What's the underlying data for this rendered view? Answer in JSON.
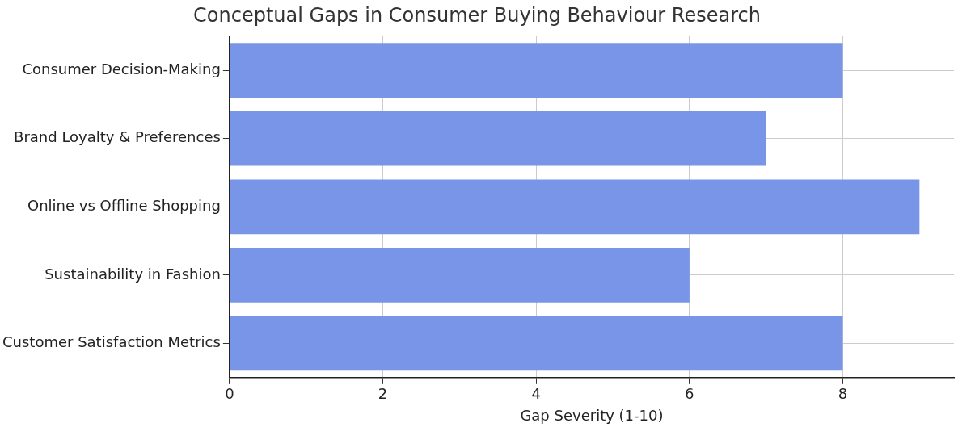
{
  "chart_data": {
    "type": "bar",
    "orientation": "horizontal",
    "title": "Conceptual Gaps in Consumer Buying Behaviour Research",
    "xlabel": "Gap Severity (1-10)",
    "categories": [
      "Consumer Decision-Making",
      "Brand Loyalty & Preferences",
      "Online vs Offline Shopping",
      "Sustainability in Fashion",
      "Customer Satisfaction Metrics"
    ],
    "values": [
      8,
      7,
      9,
      6,
      8
    ],
    "color": "#7895e8",
    "xlim": [
      0,
      9.45
    ],
    "xticks": [
      0,
      2,
      4,
      6,
      8
    ],
    "grid": true,
    "legend": false
  }
}
